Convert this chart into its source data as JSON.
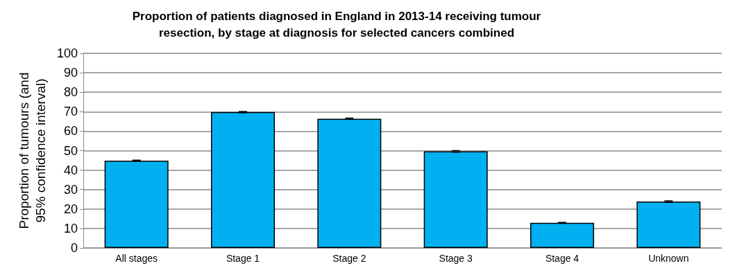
{
  "chart_data": {
    "type": "bar",
    "title": "Proportion of patients diagnosed in England in 2013-14 receiving tumour\nresection, by stage at diagnosis for selected cancers combined",
    "ylabel": "Proportion of tumours (and\n95% confidence interval)",
    "categories": [
      "All stages",
      "Stage 1",
      "Stage 2",
      "Stage 3",
      "Stage 4",
      "Unknown"
    ],
    "values": [
      44.8,
      69.8,
      66.4,
      49.6,
      12.9,
      23.8
    ],
    "errors": [
      0.3,
      0.3,
      0.3,
      0.4,
      0.2,
      0.4
    ],
    "color": "#00b0f0",
    "ylim": [
      0,
      100
    ],
    "yticks": [
      0,
      10,
      20,
      30,
      40,
      50,
      60,
      70,
      80,
      90,
      100
    ],
    "grid": "y"
  }
}
